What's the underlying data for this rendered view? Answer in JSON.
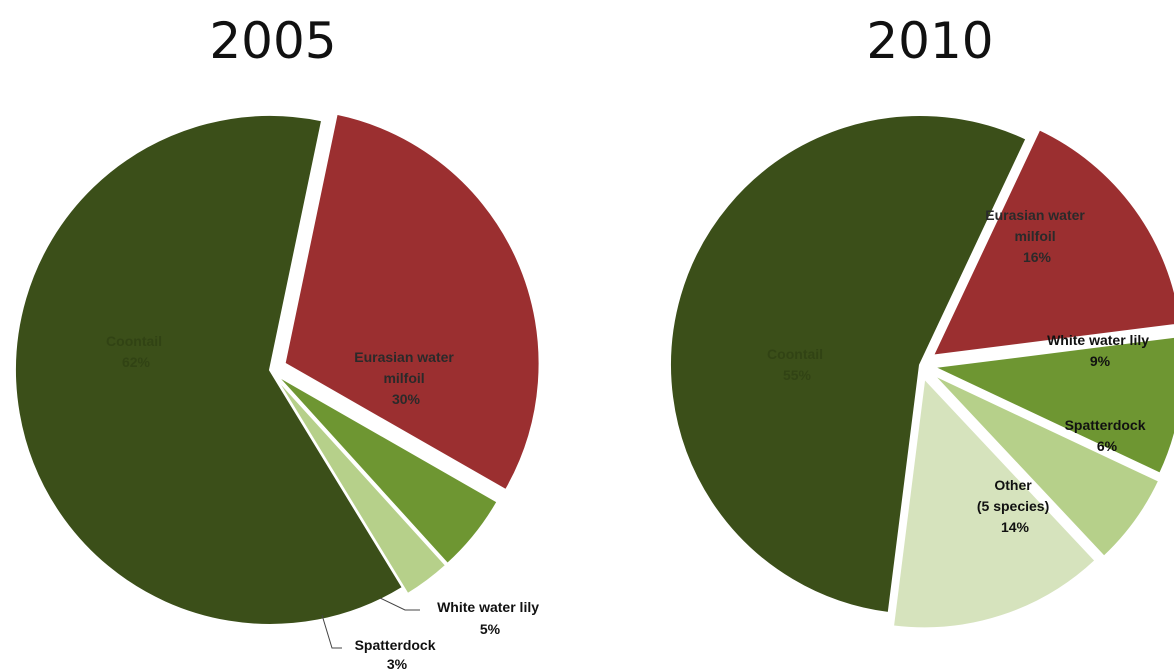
{
  "chart_data": [
    {
      "type": "pie",
      "title": "2005",
      "slices": [
        {
          "label": "Coontail",
          "value": 62,
          "value_label": "62%",
          "color": "#3b4f19"
        },
        {
          "label": "Eurasian water milfoil",
          "value": 30,
          "value_label": "30%",
          "color": "#9b2f30"
        },
        {
          "label": "White water lily",
          "value": 5,
          "value_label": "5%",
          "color": "#6e9632"
        },
        {
          "label": "Spatterdock",
          "value": 3,
          "value_label": "3%",
          "color": "#b6d08a"
        }
      ]
    },
    {
      "type": "pie",
      "title": "2010",
      "slices": [
        {
          "label": "Coontail",
          "value": 55,
          "value_label": "55%",
          "color": "#3b4f19"
        },
        {
          "label": "Eurasian water milfoil",
          "value": 16,
          "value_label": "16%",
          "color": "#9b2f30"
        },
        {
          "label": "White water lily",
          "value": 9,
          "value_label": "9%",
          "color": "#6e9632"
        },
        {
          "label": "Spatterdock",
          "value": 6,
          "value_label": "6%",
          "color": "#b6d08a"
        },
        {
          "label": "Other (5 species)",
          "value": 14,
          "value_label": "14%",
          "color": "#d6e3bd"
        }
      ]
    }
  ]
}
